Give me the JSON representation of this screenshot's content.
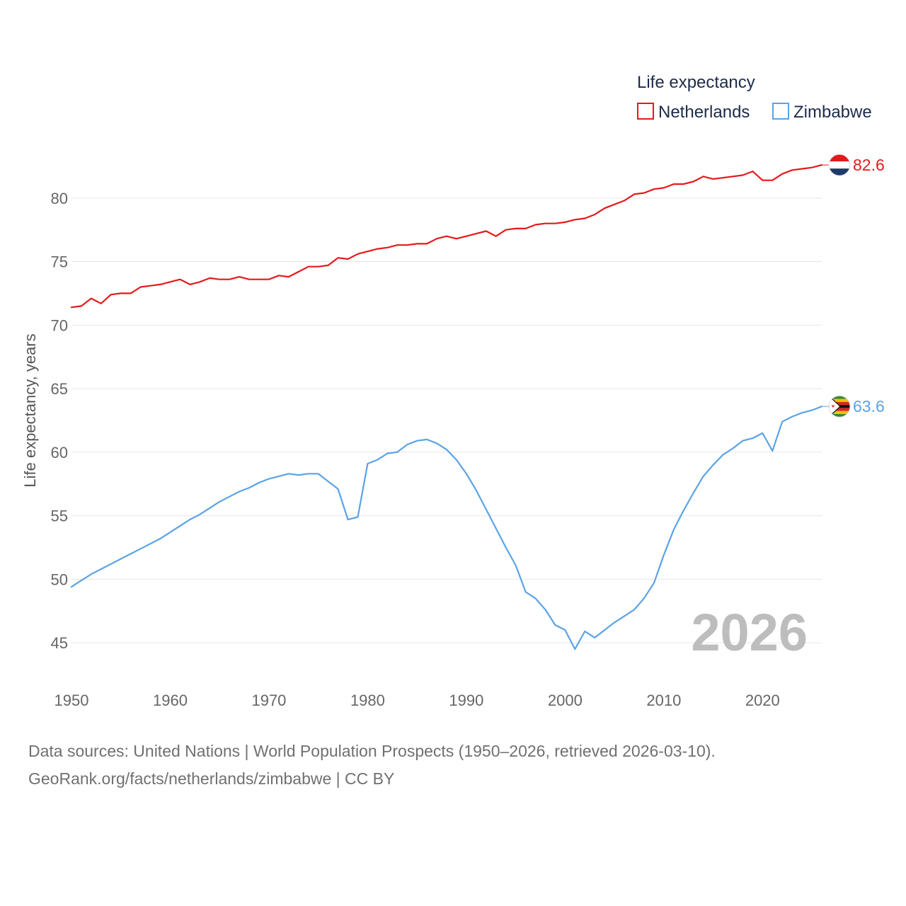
{
  "chart_data": {
    "type": "line",
    "title": "Life expectancy",
    "ylabel": "Life expectancy, years",
    "xlabel": "",
    "xlim": [
      1950,
      2026
    ],
    "ylim": [
      43,
      84
    ],
    "x_ticks": [
      1950,
      1960,
      1970,
      1980,
      1990,
      2000,
      2010,
      2020
    ],
    "y_ticks": [
      45,
      50,
      55,
      60,
      65,
      70,
      75,
      80
    ],
    "grid": true,
    "legend_position": "top-right",
    "year_label": "2026",
    "x": [
      1950,
      1951,
      1952,
      1953,
      1954,
      1955,
      1956,
      1957,
      1958,
      1959,
      1960,
      1961,
      1962,
      1963,
      1964,
      1965,
      1966,
      1967,
      1968,
      1969,
      1970,
      1971,
      1972,
      1973,
      1974,
      1975,
      1976,
      1977,
      1978,
      1979,
      1980,
      1981,
      1982,
      1983,
      1984,
      1985,
      1986,
      1987,
      1988,
      1989,
      1990,
      1991,
      1992,
      1993,
      1994,
      1995,
      1996,
      1997,
      1998,
      1999,
      2000,
      2001,
      2002,
      2003,
      2004,
      2005,
      2006,
      2007,
      2008,
      2009,
      2010,
      2011,
      2012,
      2013,
      2014,
      2015,
      2016,
      2017,
      2018,
      2019,
      2020,
      2021,
      2022,
      2023,
      2024,
      2025,
      2026
    ],
    "series": [
      {
        "name": "Netherlands",
        "color": "#e31a1c",
        "end_label": "82.6",
        "values": [
          71.4,
          71.5,
          72.1,
          71.7,
          72.4,
          72.5,
          72.5,
          73.0,
          73.1,
          73.2,
          73.4,
          73.6,
          73.2,
          73.4,
          73.7,
          73.6,
          73.6,
          73.8,
          73.6,
          73.6,
          73.6,
          73.9,
          73.8,
          74.2,
          74.6,
          74.6,
          74.7,
          75.3,
          75.2,
          75.6,
          75.8,
          76.0,
          76.1,
          76.3,
          76.3,
          76.4,
          76.4,
          76.8,
          77.0,
          76.8,
          77.0,
          77.2,
          77.4,
          77.0,
          77.5,
          77.6,
          77.6,
          77.9,
          78.0,
          78.0,
          78.1,
          78.3,
          78.4,
          78.7,
          79.2,
          79.5,
          79.8,
          80.3,
          80.4,
          80.7,
          80.8,
          81.1,
          81.1,
          81.3,
          81.7,
          81.5,
          81.6,
          81.7,
          81.8,
          82.1,
          81.4,
          81.4,
          81.9,
          82.2,
          82.3,
          82.4,
          82.6
        ]
      },
      {
        "name": "Zimbabwe",
        "color": "#5ba3e6",
        "end_label": "63.6",
        "values": [
          49.4,
          49.9,
          50.4,
          50.8,
          51.2,
          51.6,
          52.0,
          52.4,
          52.8,
          53.2,
          53.7,
          54.2,
          54.7,
          55.1,
          55.6,
          56.1,
          56.5,
          56.9,
          57.2,
          57.6,
          57.9,
          58.1,
          58.3,
          58.2,
          58.3,
          58.3,
          57.7,
          57.1,
          54.7,
          54.9,
          59.1,
          59.4,
          59.9,
          60.0,
          60.6,
          60.9,
          61.0,
          60.7,
          60.2,
          59.4,
          58.3,
          57.0,
          55.5,
          54.0,
          52.5,
          51.1,
          49.0,
          48.5,
          47.6,
          46.4,
          46.0,
          44.5,
          45.9,
          45.4,
          46.0,
          46.6,
          47.1,
          47.6,
          48.5,
          49.7,
          51.9,
          53.9,
          55.4,
          56.8,
          58.1,
          59.0,
          59.8,
          60.3,
          60.9,
          61.1,
          61.5,
          60.1,
          62.4,
          62.8,
          63.1,
          63.3,
          63.6
        ]
      }
    ]
  },
  "footer": {
    "sources": "Data sources: United Nations | World Population Prospects (1950–2026, retrieved 2026-03-10).",
    "credit": "GeoRank.org/facts/netherlands/zimbabwe | CC BY"
  }
}
